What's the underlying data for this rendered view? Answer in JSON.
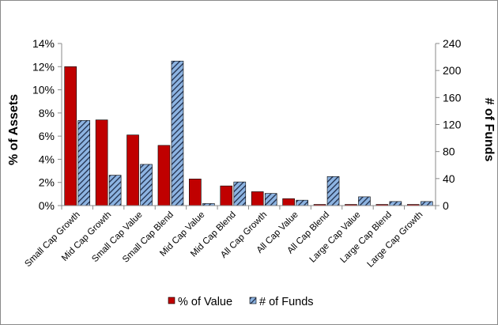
{
  "chart_data": {
    "type": "bar",
    "categories": [
      "Small Cap Growth",
      "Mid Cap Growth",
      "Small Cap Value",
      "Small Cap Blend",
      "Mid Cap Value",
      "Mid Cap Blend",
      "All Cap Growth",
      "All Cap Value",
      "All Cap Blend",
      "Large Cap Value",
      "Large Cap Blend",
      "Large Cap Growth"
    ],
    "series": [
      {
        "name": "% of Value",
        "axis": "left",
        "color": "#c00000",
        "values": [
          12.0,
          7.4,
          6.1,
          5.2,
          2.3,
          1.7,
          1.2,
          0.6,
          0.1,
          0.1,
          0.1,
          0.1
        ]
      },
      {
        "name": "# of Funds",
        "axis": "right",
        "color": "#8db4e2",
        "pattern": "diagonal-stripes",
        "values": [
          126,
          45,
          61,
          214,
          3,
          35,
          18,
          8,
          43,
          13,
          6,
          6
        ]
      }
    ],
    "ylabel": "% of Assets",
    "y2label": "# of Funds",
    "ylim": [
      0,
      14
    ],
    "y2lim": [
      0,
      240
    ],
    "yticks": [
      "0%",
      "2%",
      "4%",
      "6%",
      "8%",
      "10%",
      "12%",
      "14%"
    ],
    "y2ticks": [
      "0",
      "40",
      "80",
      "120",
      "160",
      "200",
      "240"
    ],
    "grid": false,
    "legend_position": "bottom"
  }
}
